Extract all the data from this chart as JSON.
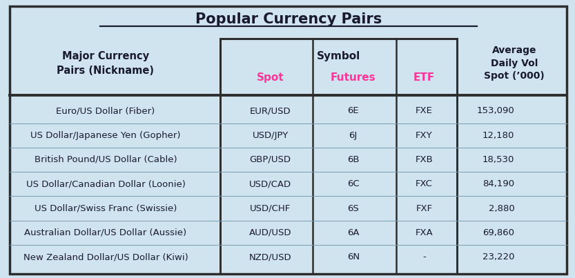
{
  "title": "Popular Currency Pairs",
  "background_color": "#d0e4f0",
  "header_col1": "Major Currency\nPairs (Nickname)",
  "header_symbol": "Symbol",
  "header_spot": "Spot",
  "header_futures": "Futures",
  "header_etf": "ETF",
  "header_avg": "Average\nDaily Vol\nSpot (’000)",
  "spot_color": "#ff3399",
  "text_color": "#1a1a2e",
  "border_color": "#2d2d2d",
  "rows": [
    {
      "pair": "Euro/US Dollar (Fiber)",
      "spot": "EUR/USD",
      "futures": "6E",
      "etf": "FXE",
      "avg": "153,090"
    },
    {
      "pair": "US Dollar/Japanese Yen (Gopher)",
      "spot": "USD/JPY",
      "futures": "6J",
      "etf": "FXY",
      "avg": "12,180"
    },
    {
      "pair": "British Pound/US Dollar (Cable)",
      "spot": "GBP/USD",
      "futures": "6B",
      "etf": "FXB",
      "avg": "18,530"
    },
    {
      "pair": "US Dollar/Canadian Dollar (Loonie)",
      "spot": "USD/CAD",
      "futures": "6C",
      "etf": "FXC",
      "avg": "84,190"
    },
    {
      "pair": "US Dollar/Swiss Franc (Swissie)",
      "spot": "USD/CHF",
      "futures": "6S",
      "etf": "FXF",
      "avg": "2,880"
    },
    {
      "pair": "Australian Dollar/US Dollar (Aussie)",
      "spot": "AUD/USD",
      "futures": "6A",
      "etf": "FXA",
      "avg": "69,860"
    },
    {
      "pair": "New Zealand Dollar/US Dollar (Kiwi)",
      "spot": "NZD/USD",
      "futures": "6N",
      "etf": "-",
      "avg": "23,220"
    }
  ],
  "col_x": {
    "pair": 0.265,
    "spot": 0.468,
    "futures": 0.613,
    "etf": 0.737,
    "avg": 0.895
  },
  "figsize": [
    8.33,
    4.03
  ],
  "dpi": 100
}
